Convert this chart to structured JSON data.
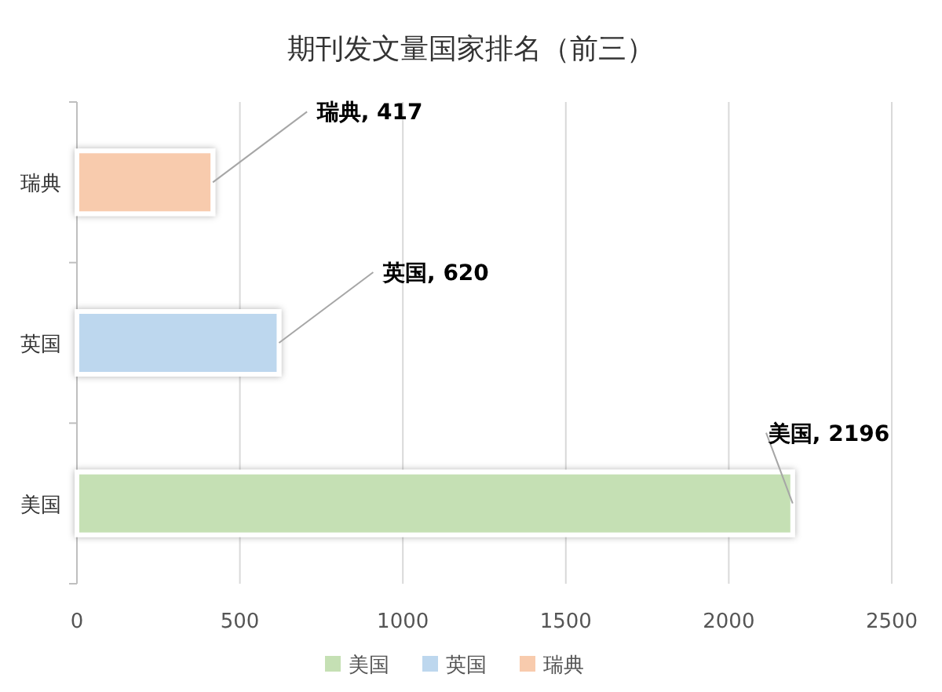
{
  "chart_data": {
    "type": "bar",
    "orientation": "horizontal",
    "title": "期刊发文量国家排名（前三）",
    "categories": [
      "瑞典",
      "英国",
      "美国"
    ],
    "series": [
      {
        "name": "美国",
        "color": "#c5e0b4",
        "values": [
          null,
          null,
          2196
        ],
        "value_labels": [
          null,
          null,
          "美国, 2196"
        ]
      },
      {
        "name": "英国",
        "color": "#bdd7ee",
        "values": [
          null,
          620,
          null
        ],
        "value_labels": [
          null,
          "英国, 620",
          null
        ]
      },
      {
        "name": "瑞典",
        "color": "#f8cbad",
        "values": [
          417,
          null,
          null
        ],
        "value_labels": [
          "瑞典, 417",
          null,
          null
        ]
      }
    ],
    "xlim": [
      0,
      2500
    ],
    "xticks": [
      0,
      500,
      1000,
      1500,
      2000,
      2500
    ],
    "grid": "x",
    "legend": "bottom"
  }
}
